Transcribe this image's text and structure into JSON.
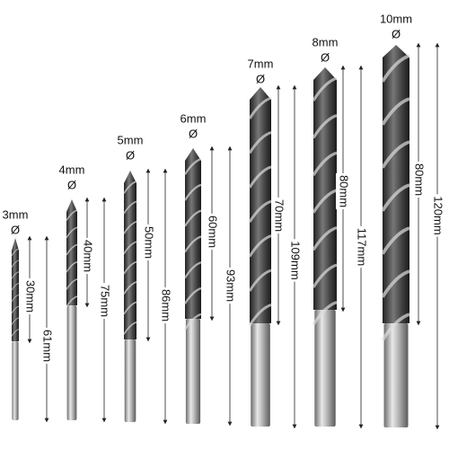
{
  "bits": [
    {
      "diameter": "3mm",
      "symbol": "Ø",
      "flute_length": "30mm",
      "total_length": "61mm"
    },
    {
      "diameter": "4mm",
      "symbol": "Ø",
      "flute_length": "40mm",
      "total_length": "75mm"
    },
    {
      "diameter": "5mm",
      "symbol": "Ø",
      "flute_length": "50mm",
      "total_length": "86mm"
    },
    {
      "diameter": "6mm",
      "symbol": "Ø",
      "flute_length": "60mm",
      "total_length": "93mm"
    },
    {
      "diameter": "7mm",
      "symbol": "Ø",
      "flute_length": "70mm",
      "total_length": "109mm"
    },
    {
      "diameter": "8mm",
      "symbol": "Ø",
      "flute_length": "80mm",
      "total_length": "117mm"
    },
    {
      "diameter": "10mm",
      "symbol": "Ø",
      "flute_length": "80mm",
      "total_length": "120mm"
    }
  ]
}
